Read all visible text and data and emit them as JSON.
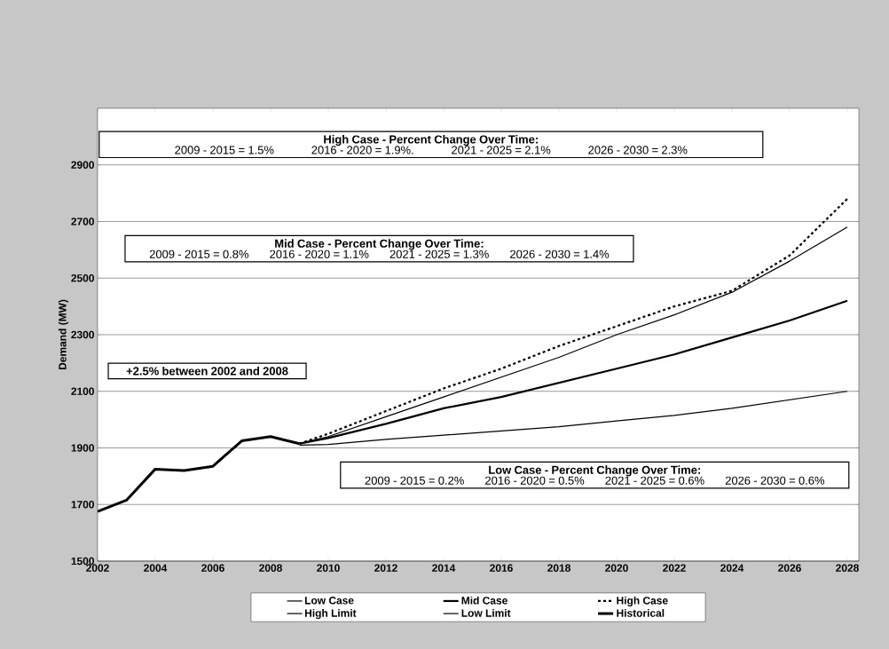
{
  "chart_data": {
    "type": "line",
    "ylabel": "Demand (MW)",
    "xlim": [
      2002,
      2028.4
    ],
    "xticks": [
      2002,
      2004,
      2006,
      2008,
      2010,
      2012,
      2014,
      2016,
      2018,
      2020,
      2022,
      2024,
      2026,
      2028
    ],
    "ylim": [
      1500,
      3100
    ],
    "yticks": [
      1500,
      1700,
      1900,
      2100,
      2300,
      2500,
      2700,
      2900
    ],
    "grid": "y",
    "legend": "bottom",
    "marker": "none",
    "series": [
      {
        "name": "Low Case",
        "color": "#000000",
        "line_style": "solid",
        "x": [
          2009,
          2010,
          2012,
          2014,
          2016,
          2018,
          2020,
          2022,
          2024,
          2026,
          2028
        ],
        "values": [
          1910,
          1912,
          1930,
          1945,
          1960,
          1975,
          1995,
          2015,
          2040,
          2070,
          2100
        ]
      },
      {
        "name": "Mid Case",
        "color": "#000000",
        "line_style": "solid",
        "x": [
          2009,
          2010,
          2012,
          2014,
          2016,
          2018,
          2020,
          2022,
          2024,
          2026,
          2028
        ],
        "values": [
          1915,
          1935,
          1985,
          2040,
          2080,
          2130,
          2180,
          2230,
          2290,
          2350,
          2420
        ]
      },
      {
        "name": "High Case",
        "color": "#000000",
        "line_style": "dashed",
        "x": [
          2009,
          2010,
          2012,
          2014,
          2016,
          2018,
          2020,
          2022,
          2024,
          2026,
          2028
        ],
        "values": [
          1915,
          1950,
          2030,
          2110,
          2180,
          2260,
          2330,
          2400,
          2455,
          2580,
          2780
        ]
      },
      {
        "name": "High Limit",
        "color": "#000000",
        "line_style": "solid",
        "x": [
          2009,
          2010,
          2012,
          2014,
          2016,
          2018,
          2020,
          2022,
          2024,
          2026,
          2028
        ],
        "values": [
          1915,
          1940,
          2010,
          2080,
          2150,
          2220,
          2300,
          2370,
          2450,
          2560,
          2680
        ]
      },
      {
        "name": "Low Limit",
        "color": "#000000",
        "line_style": "solid"
      },
      {
        "name": "Historical",
        "color": "#000000",
        "line_style": "solid",
        "x": [
          2002,
          2003,
          2004,
          2005,
          2006,
          2007,
          2008,
          2009
        ],
        "values": [
          1675,
          1715,
          1825,
          1820,
          1835,
          1925,
          1940,
          1915
        ]
      }
    ],
    "annotations": [
      "High Case - Percent Change Over Time:",
      "2009 - 2015 = 1.5%",
      "2016 - 2020 = 1.9%.",
      "2021 - 2025 = 2.1%",
      "2026 - 2030 = 2.3%",
      "Mid Case - Percent Change Over Time:",
      "2009 - 2015 = 0.8%",
      "2016 - 2020 = 1.1%",
      "2021 - 2025 = 1.3%",
      "2026 - 2030 = 1.4%",
      "+2.5% between 2002 and 2008",
      "Low Case - Percent Change Over Time:",
      "2009 - 2015 = 0.2%",
      "2016 - 2020 = 0.5%",
      "2021 - 2025 = 0.6%",
      "2026 - 2030 = 0.6%"
    ]
  }
}
